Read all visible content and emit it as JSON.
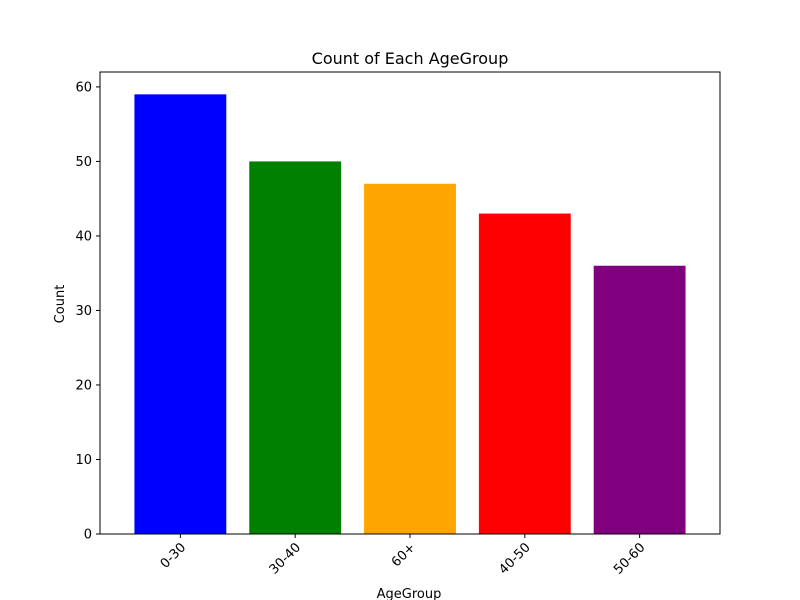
{
  "chart_data": {
    "type": "bar",
    "title": "Count of Each AgeGroup",
    "xlabel": "AgeGroup",
    "ylabel": "Count",
    "categories": [
      "0-30",
      "30-40",
      "60+",
      "40-50",
      "50-60"
    ],
    "values": [
      59,
      50,
      47,
      43,
      36
    ],
    "colors": [
      "#0000ff",
      "#008000",
      "#ffa500",
      "#ff0000",
      "#800080"
    ],
    "ylim": [
      0,
      62
    ],
    "yticks": [
      0,
      10,
      20,
      30,
      40,
      50,
      60
    ],
    "grid": false,
    "legend": "none",
    "x_tick_rotation": -45
  }
}
